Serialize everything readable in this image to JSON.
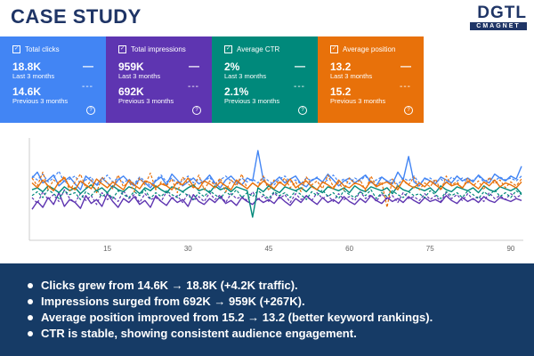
{
  "header": {
    "title": "CASE STUDY",
    "logo_main": "DGTL",
    "logo_sub": "CMAGNET"
  },
  "cards": [
    {
      "label": "Total clicks",
      "current_value": "18.8K",
      "current_period": "Last 3 months",
      "previous_value": "14.6K",
      "previous_period": "Previous 3 months",
      "color": "#4285f4"
    },
    {
      "label": "Total impressions",
      "current_value": "959K",
      "current_period": "Last 3 months",
      "previous_value": "692K",
      "previous_period": "Previous 3 months",
      "color": "#5e35b1"
    },
    {
      "label": "Average CTR",
      "current_value": "2%",
      "current_period": "Last 3 months",
      "previous_value": "2.1%",
      "previous_period": "Previous 3 months",
      "color": "#00897b"
    },
    {
      "label": "Average position",
      "current_value": "13.2",
      "current_period": "Last 3 months",
      "previous_value": "15.2",
      "previous_period": "Previous 3 months",
      "color": "#e8710a"
    }
  ],
  "chart_data": {
    "type": "line",
    "title": "",
    "xlabel": "",
    "ylabel": "",
    "x_ticks": [
      "15",
      "30",
      "45",
      "60",
      "75",
      "90"
    ],
    "x_tick_values": [
      15,
      30,
      45,
      60,
      75,
      90
    ],
    "xlim": [
      1,
      92
    ],
    "ylim": [
      0,
      100
    ],
    "series": [
      {
        "name": "Total clicks (last 3 months)",
        "color": "#4285f4",
        "dashed": false,
        "values": [
          60,
          66,
          55,
          58,
          63,
          52,
          57,
          61,
          54,
          48,
          62,
          57,
          53,
          60,
          55,
          50,
          58,
          62,
          56,
          52,
          59,
          55,
          50,
          57,
          61,
          53,
          64,
          58,
          52,
          56,
          60,
          54,
          57,
          63,
          55,
          50,
          58,
          62,
          56,
          53,
          60,
          57,
          88,
          58,
          52,
          56,
          61,
          55,
          59,
          62,
          54,
          51,
          58,
          60,
          56,
          64,
          58,
          52,
          57,
          60,
          55,
          59,
          63,
          56,
          52,
          61,
          57,
          54,
          66,
          58,
          82,
          56,
          52,
          60,
          57,
          54,
          61,
          58,
          55,
          62,
          57,
          60,
          56,
          63,
          58,
          55,
          64,
          60,
          57,
          62,
          59,
          72
        ]
      },
      {
        "name": "Total clicks (previous 3 months)",
        "color": "#4285f4",
        "dashed": true,
        "values": [
          62,
          58,
          64,
          56,
          60,
          67,
          55,
          59,
          62,
          54,
          58,
          61,
          52,
          57,
          63,
          56,
          60,
          55,
          59,
          54,
          61,
          57,
          52,
          58,
          63,
          56,
          60,
          54,
          57,
          62,
          55,
          59,
          56,
          61,
          53,
          58,
          62,
          57,
          54,
          60,
          56,
          59,
          55,
          61,
          57,
          53,
          59,
          62,
          56,
          58,
          54,
          60,
          57,
          61,
          55,
          58,
          63,
          56,
          59,
          54,
          60,
          57,
          62,
          55,
          58,
          61,
          56,
          59,
          53,
          60,
          57,
          62,
          55,
          58,
          60,
          56,
          59,
          54,
          61,
          57,
          60,
          55,
          58,
          62,
          56,
          59,
          57,
          61,
          58,
          60,
          57,
          62
        ]
      },
      {
        "name": "Total impressions (last 3 months)",
        "color": "#5e35b1",
        "dashed": false,
        "values": [
          28,
          36,
          30,
          40,
          33,
          45,
          31,
          38,
          35,
          29,
          42,
          34,
          38,
          31,
          44,
          36,
          30,
          39,
          35,
          41,
          33,
          37,
          30,
          42,
          36,
          32,
          40,
          35,
          38,
          31,
          43,
          36,
          33,
          39,
          35,
          41,
          34,
          37,
          32,
          40,
          36,
          33,
          39,
          35,
          38,
          34,
          41,
          36,
          32,
          39,
          35,
          42,
          37,
          33,
          40,
          35,
          38,
          34,
          41,
          36,
          33,
          39,
          35,
          42,
          37,
          34,
          40,
          36,
          39,
          35,
          41,
          37,
          34,
          40,
          36,
          38,
          35,
          42,
          37,
          34,
          40,
          36,
          39,
          35,
          41,
          37,
          35,
          40,
          38,
          36,
          39,
          37
        ]
      },
      {
        "name": "Total impressions (previous 3 months)",
        "color": "#5e35b1",
        "dashed": true,
        "values": [
          40,
          34,
          46,
          38,
          43,
          36,
          48,
          39,
          35,
          44,
          37,
          42,
          33,
          45,
          38,
          41,
          36,
          47,
          39,
          43,
          35,
          44,
          38,
          40,
          36,
          46,
          39,
          42,
          35,
          44,
          37,
          41,
          36,
          45,
          38,
          43,
          35,
          44,
          39,
          41,
          37,
          46,
          38,
          42,
          36,
          45,
          39,
          43,
          35,
          44,
          38,
          41,
          37,
          45,
          39,
          42,
          36,
          44,
          38,
          41,
          37,
          46,
          39,
          43,
          36,
          44,
          38,
          42,
          35,
          45,
          39,
          41,
          37,
          44,
          38,
          42,
          36,
          45,
          39,
          43,
          37,
          44,
          38,
          41,
          36,
          45,
          39,
          42,
          38,
          44,
          40,
          43
        ]
      },
      {
        "name": "Average CTR (last 3 months)",
        "color": "#00897b",
        "dashed": false,
        "values": [
          48,
          50,
          46,
          52,
          49,
          45,
          51,
          47,
          50,
          44,
          49,
          53,
          47,
          50,
          45,
          52,
          48,
          46,
          51,
          49,
          44,
          50,
          47,
          52,
          48,
          45,
          51,
          49,
          46,
          50,
          53,
          47,
          49,
          45,
          52,
          48,
          50,
          46,
          51,
          49,
          47,
          20,
          50,
          46,
          52,
          48,
          45,
          51,
          49,
          47,
          50,
          46,
          52,
          48,
          45,
          51,
          49,
          47,
          50,
          45,
          52,
          48,
          46,
          51,
          49,
          47,
          50,
          44,
          52,
          48,
          46,
          51,
          49,
          47,
          50,
          45,
          52,
          48,
          46,
          51,
          49,
          47,
          50,
          45,
          52,
          48,
          46,
          51,
          49,
          47,
          50,
          44
        ]
      },
      {
        "name": "Average CTR (previous 3 months)",
        "color": "#00897b",
        "dashed": true,
        "values": [
          42,
          46,
          40,
          48,
          44,
          39,
          47,
          43,
          45,
          38,
          46,
          42,
          48,
          41,
          45,
          39,
          47,
          43,
          40,
          46,
          42,
          48,
          39,
          45,
          41,
          47,
          43,
          40,
          46,
          42,
          38,
          45,
          41,
          47,
          43,
          39,
          46,
          42,
          48,
          40,
          45,
          41,
          47,
          43,
          39,
          46,
          42,
          45,
          40,
          47,
          43,
          38,
          46,
          42,
          48,
          41,
          45,
          39,
          47,
          43,
          40,
          46,
          42,
          48,
          39,
          45,
          41,
          47,
          43,
          40,
          46,
          42,
          44,
          40,
          47,
          43,
          39,
          46,
          42,
          45,
          40,
          47,
          43,
          39,
          46,
          42,
          48,
          41,
          45,
          40,
          47,
          43
        ]
      },
      {
        "name": "Average position (last 3 months)",
        "color": "#e8710a",
        "dashed": false,
        "values": [
          55,
          50,
          58,
          52,
          47,
          56,
          60,
          51,
          48,
          57,
          53,
          49,
          59,
          54,
          50,
          56,
          52,
          48,
          58,
          53,
          49,
          57,
          55,
          50,
          54,
          52,
          48,
          56,
          53,
          60,
          51,
          49,
          57,
          54,
          50,
          56,
          52,
          48,
          58,
          53,
          49,
          55,
          51,
          57,
          53,
          49,
          56,
          52,
          59,
          50,
          54,
          57,
          51,
          48,
          56,
          53,
          49,
          58,
          52,
          50,
          55,
          53,
          49,
          57,
          51,
          54,
          56,
          52,
          48,
          58,
          53,
          50,
          55,
          51,
          57,
          53,
          49,
          56,
          52,
          54,
          50,
          57,
          53,
          49,
          56,
          52,
          58,
          51,
          55,
          53,
          50,
          56
        ]
      },
      {
        "name": "Average position (previous 3 months)",
        "color": "#e8710a",
        "dashed": true,
        "values": [
          60,
          52,
          66,
          48,
          58,
          54,
          62,
          47,
          56,
          64,
          50,
          58,
          45,
          61,
          55,
          49,
          63,
          51,
          57,
          46,
          60,
          53,
          65,
          48,
          56,
          52,
          59,
          45,
          61,
          54,
          50,
          63,
          48,
          57,
          53,
          60,
          46,
          58,
          52,
          64,
          49,
          55,
          51,
          62,
          47,
          58,
          54,
          60,
          50,
          56,
          46,
          61,
          53,
          57,
          49,
          63,
          51,
          55,
          48,
          60,
          54,
          58,
          47,
          62,
          52,
          56,
          30,
          59,
          50,
          57,
          53,
          61,
          48,
          55,
          51,
          59,
          47,
          62,
          53,
          56,
          49,
          60,
          52,
          57,
          48,
          61,
          54,
          58,
          50,
          56,
          52,
          59
        ]
      }
    ]
  },
  "insights": [
    "Clicks grew from 14.6K → 18.8K (+4.2K traffic).",
    "Impressions surged from 692K → 959K (+267K).",
    "Average position improved from 15.2 → 13.2 (better keyword rankings).",
    "CTR is stable, showing consistent audience engagement."
  ]
}
